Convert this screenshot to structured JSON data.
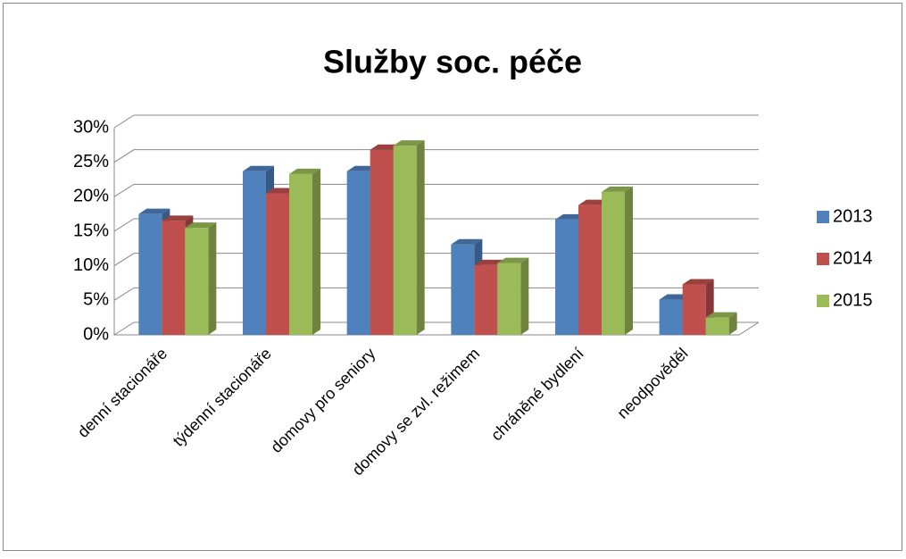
{
  "chart_data": {
    "type": "bar3d",
    "title": "Služby soc. péče",
    "categories": [
      "denní stacionáře",
      "týdenní stacionáře",
      "domovy pro seniory",
      "domovy se zvl. režimem",
      "chráněné bydlení",
      "neodpověděl"
    ],
    "series": [
      {
        "name": "2013",
        "color": "#4f81bd",
        "values": [
          17.5,
          23.7,
          23.7,
          13.1,
          16.7,
          5.1
        ]
      },
      {
        "name": "2014",
        "color": "#c0504d",
        "values": [
          16.5,
          20.5,
          26.8,
          10.1,
          18.8,
          7.3
        ]
      },
      {
        "name": "2015",
        "color": "#9bbb59",
        "values": [
          15.5,
          23.3,
          27.4,
          10.4,
          20.7,
          2.5
        ]
      }
    ],
    "ylim": [
      0,
      30
    ],
    "yticks": [
      {
        "value": 0,
        "label": "0%"
      },
      {
        "value": 5,
        "label": "5%"
      },
      {
        "value": 10,
        "label": "10%"
      },
      {
        "value": 15,
        "label": "15%"
      },
      {
        "value": 20,
        "label": "20%"
      },
      {
        "value": 25,
        "label": "25%"
      },
      {
        "value": 30,
        "label": "30%"
      }
    ],
    "grid": true,
    "legend": "right"
  }
}
